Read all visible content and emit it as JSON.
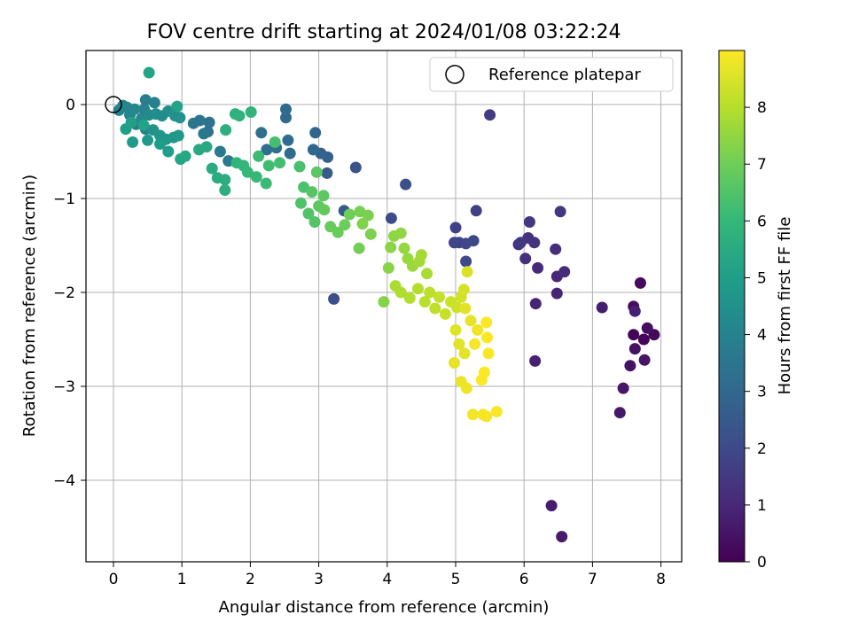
{
  "chart_data": {
    "type": "scatter",
    "title": "FOV centre drift starting at 2024/01/08 03:22:24",
    "xlabel": "Angular distance from reference (arcmin)",
    "ylabel": "Rotation from reference (arcmin)",
    "xlim": [
      -0.4,
      8.3
    ],
    "ylim": [
      -4.85,
      0.58
    ],
    "xticks": [
      "0",
      "1",
      "2",
      "3",
      "4",
      "5",
      "6",
      "7",
      "8"
    ],
    "yticks": [
      "0",
      "−1",
      "−2",
      "−3",
      "−4"
    ],
    "grid": true,
    "colormap": "viridis",
    "colorbar": {
      "label": "Hours from first FF file",
      "range": [
        0,
        9
      ],
      "ticks": [
        "0",
        "1",
        "2",
        "3",
        "4",
        "5",
        "6",
        "7",
        "8"
      ]
    },
    "legend": {
      "position": "top-right",
      "entries": [
        "Reference platepar"
      ]
    },
    "reference_point": {
      "x": 0,
      "y": 0
    },
    "points": [
      {
        "x": 7.6,
        "y": -2.45,
        "h": 0.1
      },
      {
        "x": 7.75,
        "y": -2.5,
        "h": 0.15
      },
      {
        "x": 7.9,
        "y": -2.45,
        "h": 0.2
      },
      {
        "x": 7.7,
        "y": -1.9,
        "h": 0.25
      },
      {
        "x": 7.6,
        "y": -2.15,
        "h": 0.3
      },
      {
        "x": 7.8,
        "y": -2.38,
        "h": 0.35
      },
      {
        "x": 7.62,
        "y": -2.6,
        "h": 0.4
      },
      {
        "x": 7.55,
        "y": -2.78,
        "h": 0.45
      },
      {
        "x": 7.76,
        "y": -2.72,
        "h": 0.5
      },
      {
        "x": 7.45,
        "y": -3.02,
        "h": 0.55
      },
      {
        "x": 7.4,
        "y": -3.28,
        "h": 0.6
      },
      {
        "x": 6.55,
        "y": -4.6,
        "h": 0.65
      },
      {
        "x": 6.4,
        "y": -4.27,
        "h": 0.7
      },
      {
        "x": 7.14,
        "y": -2.16,
        "h": 0.75
      },
      {
        "x": 7.62,
        "y": -2.2,
        "h": 0.8
      },
      {
        "x": 6.16,
        "y": -2.73,
        "h": 0.85
      },
      {
        "x": 6.17,
        "y": -2.12,
        "h": 0.9
      },
      {
        "x": 6.48,
        "y": -2.01,
        "h": 0.95
      },
      {
        "x": 6.48,
        "y": -1.83,
        "h": 1.0
      },
      {
        "x": 6.59,
        "y": -1.78,
        "h": 1.05
      },
      {
        "x": 6.2,
        "y": -1.74,
        "h": 1.1
      },
      {
        "x": 6.46,
        "y": -1.54,
        "h": 1.15
      },
      {
        "x": 6.02,
        "y": -1.64,
        "h": 1.2
      },
      {
        "x": 5.92,
        "y": -1.49,
        "h": 1.25
      },
      {
        "x": 6.06,
        "y": -1.42,
        "h": 1.3
      },
      {
        "x": 6.15,
        "y": -1.47,
        "h": 1.35
      },
      {
        "x": 6.08,
        "y": -1.25,
        "h": 1.4
      },
      {
        "x": 6.53,
        "y": -1.14,
        "h": 1.45
      },
      {
        "x": 5.95,
        "y": -1.47,
        "h": 1.5
      },
      {
        "x": 5.5,
        "y": -0.11,
        "h": 1.6
      },
      {
        "x": 5.3,
        "y": -1.13,
        "h": 1.7
      },
      {
        "x": 5.0,
        "y": -1.31,
        "h": 1.75
      },
      {
        "x": 5.05,
        "y": -1.47,
        "h": 1.8
      },
      {
        "x": 4.98,
        "y": -1.47,
        "h": 1.85
      },
      {
        "x": 5.15,
        "y": -1.48,
        "h": 1.9
      },
      {
        "x": 5.26,
        "y": -1.45,
        "h": 1.95
      },
      {
        "x": 5.15,
        "y": -1.67,
        "h": 2.0
      },
      {
        "x": 4.06,
        "y": -1.21,
        "h": 2.05
      },
      {
        "x": 3.22,
        "y": -2.07,
        "h": 2.1
      },
      {
        "x": 4.27,
        "y": -0.85,
        "h": 2.2
      },
      {
        "x": 3.54,
        "y": -0.67,
        "h": 2.3
      },
      {
        "x": 3.37,
        "y": -1.13,
        "h": 2.5
      },
      {
        "x": 3.12,
        "y": -0.73,
        "h": 2.6
      },
      {
        "x": 3.13,
        "y": -0.56,
        "h": 2.7
      },
      {
        "x": 3.03,
        "y": -0.52,
        "h": 2.8
      },
      {
        "x": 2.95,
        "y": -0.3,
        "h": 2.9
      },
      {
        "x": 2.92,
        "y": -0.48,
        "h": 3.0
      },
      {
        "x": 2.52,
        "y": -0.14,
        "h": 3.05
      },
      {
        "x": 2.52,
        "y": -0.05,
        "h": 3.1
      },
      {
        "x": 2.55,
        "y": -0.38,
        "h": 3.15
      },
      {
        "x": 2.58,
        "y": -0.52,
        "h": 3.2
      },
      {
        "x": 2.24,
        "y": -0.48,
        "h": 3.25
      },
      {
        "x": 2.16,
        "y": -0.3,
        "h": 3.3
      },
      {
        "x": 2.38,
        "y": -0.46,
        "h": 3.35
      },
      {
        "x": 1.38,
        "y": -0.29,
        "h": 3.4
      },
      {
        "x": 1.4,
        "y": -0.19,
        "h": 3.45
      },
      {
        "x": 1.26,
        "y": -0.17,
        "h": 3.5
      },
      {
        "x": 1.17,
        "y": -0.2,
        "h": 3.55
      },
      {
        "x": 1.32,
        "y": -0.31,
        "h": 3.6
      },
      {
        "x": 1.68,
        "y": -0.6,
        "h": 3.65
      },
      {
        "x": 1.56,
        "y": -0.5,
        "h": 3.7
      },
      {
        "x": 0.47,
        "y": -0.26,
        "h": 3.75
      },
      {
        "x": 0.33,
        "y": -0.21,
        "h": 3.8
      },
      {
        "x": 0.47,
        "y": 0.05,
        "h": 3.85
      },
      {
        "x": 0.6,
        "y": 0.02,
        "h": 3.9
      },
      {
        "x": 0.45,
        "y": -0.05,
        "h": 3.95
      },
      {
        "x": 0.08,
        "y": -0.06,
        "h": 4.0
      },
      {
        "x": 0.14,
        "y": -0.01,
        "h": 4.05
      },
      {
        "x": 0.2,
        "y": -0.03,
        "h": 4.1
      },
      {
        "x": 0.24,
        "y": -0.11,
        "h": 4.15
      },
      {
        "x": 0.31,
        "y": -0.05,
        "h": 4.2
      },
      {
        "x": 0.41,
        "y": -0.15,
        "h": 4.25
      },
      {
        "x": 0.52,
        "y": -0.11,
        "h": 4.3
      },
      {
        "x": 0.62,
        "y": -0.1,
        "h": 4.35
      },
      {
        "x": 0.71,
        "y": -0.12,
        "h": 4.4
      },
      {
        "x": 0.8,
        "y": -0.07,
        "h": 4.45
      },
      {
        "x": 0.9,
        "y": -0.12,
        "h": 4.5
      },
      {
        "x": 0.97,
        "y": -0.14,
        "h": 4.55
      },
      {
        "x": 0.58,
        "y": -0.27,
        "h": 4.6
      },
      {
        "x": 0.68,
        "y": -0.33,
        "h": 4.65
      },
      {
        "x": 0.77,
        "y": -0.37,
        "h": 4.7
      },
      {
        "x": 0.88,
        "y": -0.35,
        "h": 4.75
      },
      {
        "x": 0.95,
        "y": -0.33,
        "h": 4.8
      },
      {
        "x": 0.28,
        "y": -0.4,
        "h": 4.85
      },
      {
        "x": 0.5,
        "y": -0.38,
        "h": 4.9
      },
      {
        "x": 0.68,
        "y": -0.42,
        "h": 4.95
      },
      {
        "x": 0.8,
        "y": -0.5,
        "h": 5.0
      },
      {
        "x": 0.18,
        "y": -0.26,
        "h": 5.05
      },
      {
        "x": 0.26,
        "y": -0.19,
        "h": 5.1
      },
      {
        "x": 0.44,
        "y": -0.22,
        "h": 5.15
      },
      {
        "x": 0.52,
        "y": 0.34,
        "h": 5.2
      },
      {
        "x": 0.93,
        "y": -0.02,
        "h": 5.25
      },
      {
        "x": 0.98,
        "y": -0.58,
        "h": 5.3
      },
      {
        "x": 1.05,
        "y": -0.55,
        "h": 5.35
      },
      {
        "x": 1.25,
        "y": -0.48,
        "h": 5.4
      },
      {
        "x": 1.36,
        "y": -0.45,
        "h": 5.45
      },
      {
        "x": 1.44,
        "y": -0.68,
        "h": 5.5
      },
      {
        "x": 1.52,
        "y": -0.78,
        "h": 5.55
      },
      {
        "x": 1.63,
        "y": -0.8,
        "h": 5.6
      },
      {
        "x": 1.63,
        "y": -0.91,
        "h": 5.65
      },
      {
        "x": 1.64,
        "y": -0.27,
        "h": 5.7
      },
      {
        "x": 1.78,
        "y": -0.1,
        "h": 5.75
      },
      {
        "x": 1.84,
        "y": -0.12,
        "h": 5.8
      },
      {
        "x": 2.01,
        "y": -0.08,
        "h": 5.85
      },
      {
        "x": 1.8,
        "y": -0.62,
        "h": 5.9
      },
      {
        "x": 1.9,
        "y": -0.65,
        "h": 5.95
      },
      {
        "x": 1.96,
        "y": -0.72,
        "h": 6.0
      },
      {
        "x": 2.09,
        "y": -0.77,
        "h": 6.05
      },
      {
        "x": 2.23,
        "y": -0.84,
        "h": 6.1
      },
      {
        "x": 2.12,
        "y": -0.55,
        "h": 6.15
      },
      {
        "x": 2.27,
        "y": -0.65,
        "h": 6.2
      },
      {
        "x": 2.43,
        "y": -0.62,
        "h": 6.25
      },
      {
        "x": 2.36,
        "y": -0.4,
        "h": 6.3
      },
      {
        "x": 2.72,
        "y": -0.66,
        "h": 6.35
      },
      {
        "x": 2.78,
        "y": -0.88,
        "h": 6.4
      },
      {
        "x": 2.74,
        "y": -1.05,
        "h": 6.45
      },
      {
        "x": 2.85,
        "y": -1.16,
        "h": 6.5
      },
      {
        "x": 2.94,
        "y": -1.25,
        "h": 6.55
      },
      {
        "x": 2.9,
        "y": -0.93,
        "h": 6.6
      },
      {
        "x": 2.97,
        "y": -0.72,
        "h": 6.65
      },
      {
        "x": 3.07,
        "y": -0.97,
        "h": 6.7
      },
      {
        "x": 3.0,
        "y": -1.08,
        "h": 6.75
      },
      {
        "x": 3.08,
        "y": -1.12,
        "h": 6.8
      },
      {
        "x": 3.17,
        "y": -1.3,
        "h": 6.85
      },
      {
        "x": 3.28,
        "y": -1.36,
        "h": 6.9
      },
      {
        "x": 3.38,
        "y": -1.28,
        "h": 6.95
      },
      {
        "x": 3.45,
        "y": -1.17,
        "h": 7.0
      },
      {
        "x": 3.59,
        "y": -1.53,
        "h": 7.05
      },
      {
        "x": 3.6,
        "y": -1.14,
        "h": 7.1
      },
      {
        "x": 3.72,
        "y": -1.18,
        "h": 7.15
      },
      {
        "x": 3.76,
        "y": -1.38,
        "h": 7.2
      },
      {
        "x": 3.64,
        "y": -1.27,
        "h": 7.25
      },
      {
        "x": 3.95,
        "y": -2.1,
        "h": 7.3
      },
      {
        "x": 4.02,
        "y": -1.74,
        "h": 7.35
      },
      {
        "x": 4.05,
        "y": -1.52,
        "h": 7.4
      },
      {
        "x": 4.1,
        "y": -1.4,
        "h": 7.45
      },
      {
        "x": 4.2,
        "y": -1.37,
        "h": 7.5
      },
      {
        "x": 4.25,
        "y": -1.53,
        "h": 7.55
      },
      {
        "x": 4.3,
        "y": -1.64,
        "h": 7.6
      },
      {
        "x": 4.37,
        "y": -1.72,
        "h": 7.65
      },
      {
        "x": 4.47,
        "y": -1.67,
        "h": 7.7
      },
      {
        "x": 4.5,
        "y": -1.6,
        "h": 7.75
      },
      {
        "x": 4.58,
        "y": -1.8,
        "h": 7.8
      },
      {
        "x": 4.12,
        "y": -1.93,
        "h": 7.85
      },
      {
        "x": 4.2,
        "y": -2.0,
        "h": 7.9
      },
      {
        "x": 4.33,
        "y": -2.06,
        "h": 7.95
      },
      {
        "x": 4.45,
        "y": -1.96,
        "h": 8.0
      },
      {
        "x": 4.55,
        "y": -2.1,
        "h": 8.05
      },
      {
        "x": 4.62,
        "y": -2.0,
        "h": 8.1
      },
      {
        "x": 4.7,
        "y": -2.17,
        "h": 8.15
      },
      {
        "x": 4.76,
        "y": -2.05,
        "h": 8.2
      },
      {
        "x": 4.85,
        "y": -2.23,
        "h": 8.25
      },
      {
        "x": 4.93,
        "y": -2.1,
        "h": 8.3
      },
      {
        "x": 5.02,
        "y": -2.16,
        "h": 8.35
      },
      {
        "x": 5.08,
        "y": -2.05,
        "h": 8.4
      },
      {
        "x": 5.12,
        "y": -1.97,
        "h": 8.45
      },
      {
        "x": 5.17,
        "y": -1.78,
        "h": 8.5
      },
      {
        "x": 5.0,
        "y": -2.4,
        "h": 8.55
      },
      {
        "x": 5.05,
        "y": -2.55,
        "h": 8.6
      },
      {
        "x": 5.13,
        "y": -2.65,
        "h": 8.65
      },
      {
        "x": 4.98,
        "y": -2.75,
        "h": 8.7
      },
      {
        "x": 5.08,
        "y": -2.95,
        "h": 8.75
      },
      {
        "x": 5.16,
        "y": -3.02,
        "h": 8.8
      },
      {
        "x": 5.25,
        "y": -3.3,
        "h": 8.85
      },
      {
        "x": 5.4,
        "y": -3.3,
        "h": 8.9
      },
      {
        "x": 5.45,
        "y": -3.32,
        "h": 8.92
      },
      {
        "x": 5.6,
        "y": -3.27,
        "h": 8.94
      },
      {
        "x": 5.38,
        "y": -2.93,
        "h": 8.96
      },
      {
        "x": 5.42,
        "y": -2.85,
        "h": 8.97
      },
      {
        "x": 5.46,
        "y": -2.48,
        "h": 8.98
      },
      {
        "x": 5.45,
        "y": -2.32,
        "h": 8.99
      },
      {
        "x": 5.48,
        "y": -2.65,
        "h": 8.99
      },
      {
        "x": 5.28,
        "y": -2.55,
        "h": 8.9
      },
      {
        "x": 5.32,
        "y": -2.4,
        "h": 8.8
      },
      {
        "x": 5.22,
        "y": -2.3,
        "h": 8.7
      },
      {
        "x": 5.14,
        "y": -2.17,
        "h": 8.6
      }
    ]
  }
}
